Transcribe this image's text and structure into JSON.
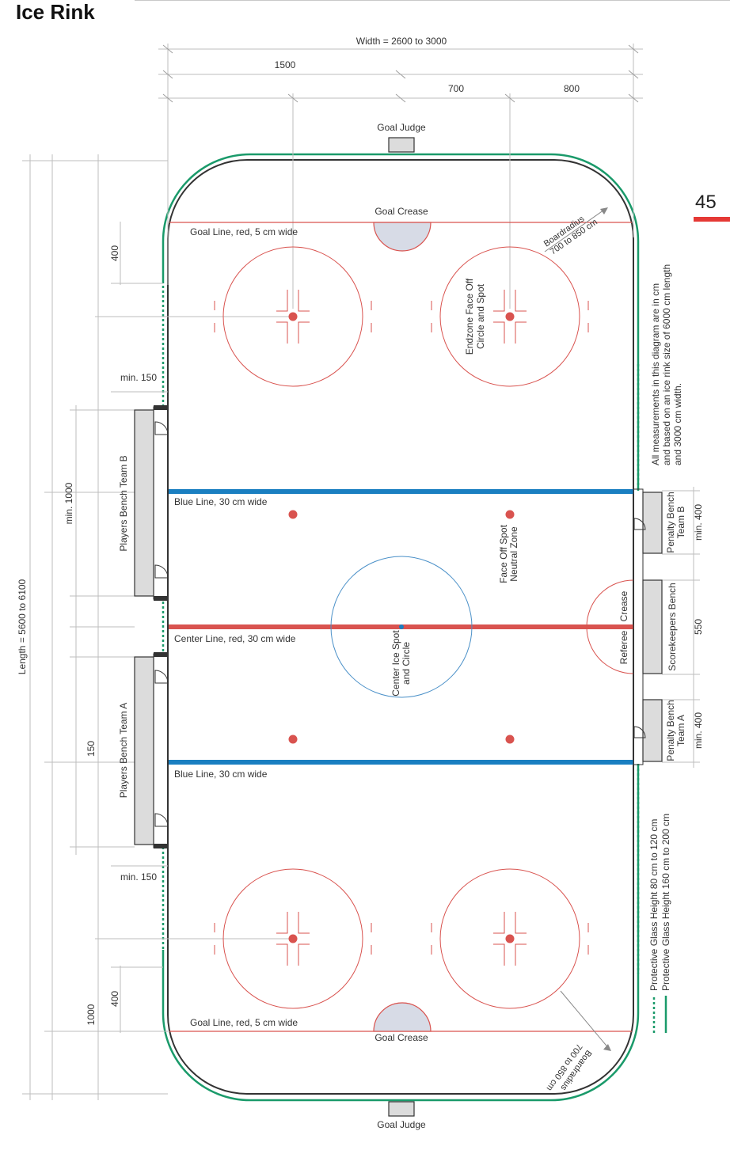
{
  "page": {
    "heading": "Ice Rink",
    "page_number": "45"
  },
  "dimensions": {
    "width": "Width = 2600 to 3000",
    "half_width": "1500",
    "spot_to_center": "700",
    "spot_to_board": "800",
    "length": "Length = 5600 to 6100",
    "goal_to_board_top": "400",
    "goal_to_board_bottom": "400",
    "goal_to_blue_bottom": "1000",
    "bench_length": "min. 1000",
    "bench_gap_top": "min. 150",
    "bench_gap_bottom": "min. 150",
    "bench_gap_center": "150",
    "penalty_b": "min. 400",
    "scorekeepers": "550",
    "penalty_a": "min. 400"
  },
  "labels": {
    "goal_judge_top": "Goal Judge",
    "goal_judge_bottom": "Goal Judge",
    "goal_crease_top": "Goal Crease",
    "goal_crease_bottom": "Goal Crease",
    "goal_line_top": "Goal Line, red, 5 cm wide",
    "goal_line_bottom": "Goal Line, red, 5 cm wide",
    "boardradius_top_1": "Boardradius",
    "boardradius_top_2": "700 to 850 cm",
    "boardradius_bottom_1": "Boardradius",
    "boardradius_bottom_2": "700 to 850 cm",
    "endzone_1": "Endzone Face Off",
    "endzone_2": "Circle and Spot",
    "blue_line_top": "Blue Line, 30 cm wide",
    "blue_line_bottom": "Blue Line, 30 cm wide",
    "center_line": "Center Line, red, 30 cm wide",
    "center_spot_1": "Center Ice Spot",
    "center_spot_2": "and Circle",
    "neutral_1": "Face Off Spot",
    "neutral_2": "Neutral Zone",
    "referee": "Referee",
    "crease": "Crease",
    "bench_b": "Players Bench Team B",
    "bench_a": "Players Bench Team A",
    "penalty_b_1": "Penalty Bench",
    "penalty_b_2": "Team B",
    "scorekeepers": "Scorekeepers Bench",
    "penalty_a_1": "Penalty Bench",
    "penalty_a_2": "Team A",
    "note_1": "All measurements in this diagram are in cm",
    "note_2": "and based on an ice rink size of 6000 cm length",
    "note_3": "and 3000 cm width.",
    "legend_dotted": "Protective Glass Height  80 cm to 120 cm",
    "legend_solid": "Protective Glass Height 160 cm to 200 cm"
  },
  "colors": {
    "red_line": "#d9534f",
    "blue_line": "#1a7fc1",
    "glass_green": "#1a9a6a",
    "board": "#333333",
    "crease_fill": "#d7dbe6",
    "bench_fill": "#dcdcdc",
    "center_circle": "#4a90c8",
    "accent": "#e53935"
  }
}
